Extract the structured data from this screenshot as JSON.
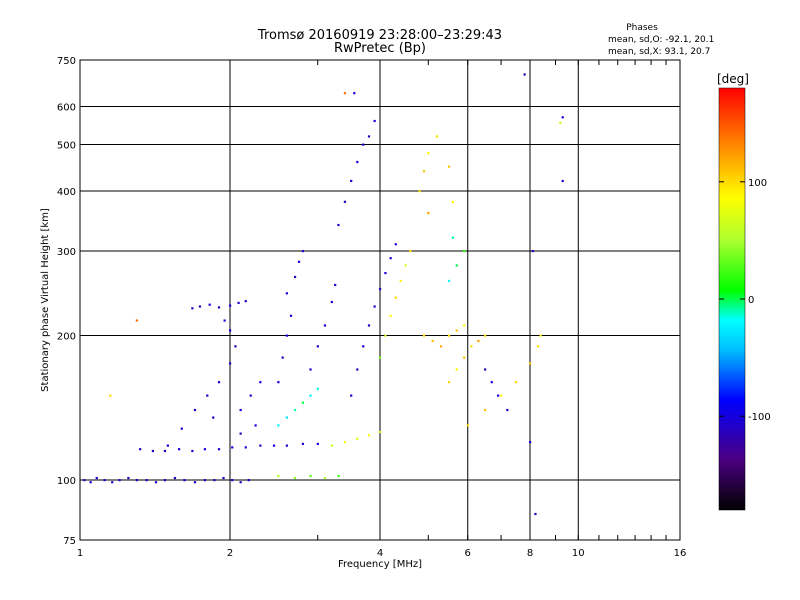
{
  "chart_data": {
    "type": "scatter",
    "title": "Tromsø 20160919 23:28:00–23:29:43",
    "subtitle": "RwPretec (Bp)",
    "xlabel": "Frequency [MHz]",
    "ylabel": "Stationary phase Virtual Height [km]",
    "x_scale": "log",
    "y_scale": "log",
    "xlim": [
      1,
      16
    ],
    "ylim": [
      75,
      750
    ],
    "x_ticks": [
      1,
      2,
      4,
      6,
      8,
      10,
      16
    ],
    "x_tick_labels": [
      "1",
      "2",
      "4",
      "6",
      "8",
      "10",
      "16"
    ],
    "y_ticks": [
      75,
      100,
      200,
      300,
      400,
      500,
      600,
      750
    ],
    "y_tick_labels": [
      "75",
      "100",
      "200",
      "300",
      "400",
      "500",
      "600",
      "750"
    ],
    "grid": true,
    "stats": {
      "heading": "Phases",
      "line_o": "mean, sd,O: -92.1, 20.1",
      "line_x": "mean, sd,X:  93.1, 20.7"
    },
    "colorbar": {
      "title": "[deg]",
      "range": [
        -180,
        180
      ],
      "ticks": [
        100,
        0,
        -100
      ],
      "tick_labels": [
        "100",
        "0",
        "-100"
      ],
      "colormap": "rainbow"
    },
    "series": [
      {
        "points": [
          [
            1.02,
            100,
            -110
          ],
          [
            1.05,
            99,
            -105
          ],
          [
            1.08,
            101,
            -100
          ],
          [
            1.12,
            100,
            -112
          ],
          [
            1.16,
            99,
            -108
          ],
          [
            1.2,
            100,
            -104
          ],
          [
            1.25,
            101,
            -110
          ],
          [
            1.3,
            100,
            -106
          ],
          [
            1.36,
            100,
            -100
          ],
          [
            1.42,
            99,
            -110
          ],
          [
            1.48,
            100,
            -105
          ],
          [
            1.55,
            101,
            -112
          ],
          [
            1.62,
            100,
            -104
          ],
          [
            1.7,
            99,
            -108
          ],
          [
            1.78,
            100,
            -100
          ],
          [
            1.86,
            100,
            -110
          ],
          [
            1.94,
            101,
            -106
          ],
          [
            2.02,
            100,
            -104
          ],
          [
            2.1,
            99,
            -110
          ],
          [
            2.18,
            100,
            -100
          ],
          [
            1.32,
            116,
            -110
          ],
          [
            1.4,
            115,
            -106
          ],
          [
            1.48,
            115,
            -112
          ],
          [
            1.58,
            116,
            -104
          ],
          [
            1.68,
            115,
            -108
          ],
          [
            1.78,
            116,
            -100
          ],
          [
            1.9,
            116,
            -110
          ],
          [
            2.02,
            117,
            -106
          ],
          [
            2.15,
            117,
            -104
          ],
          [
            2.3,
            118,
            -110
          ],
          [
            2.45,
            118,
            -100
          ],
          [
            2.6,
            118,
            -108
          ],
          [
            2.8,
            119,
            -105
          ],
          [
            3.0,
            119,
            -104
          ],
          [
            1.68,
            228,
            -112
          ],
          [
            1.74,
            230,
            -108
          ],
          [
            1.82,
            232,
            -104
          ],
          [
            1.9,
            229,
            -110
          ],
          [
            2.0,
            231,
            -100
          ],
          [
            2.08,
            234,
            -106
          ],
          [
            2.15,
            236,
            -110
          ],
          [
            1.5,
            118,
            -100
          ],
          [
            1.6,
            128,
            -104
          ],
          [
            1.7,
            140,
            -110
          ],
          [
            1.8,
            150,
            -106
          ],
          [
            1.9,
            160,
            -100
          ],
          [
            2.0,
            175,
            -108
          ],
          [
            2.05,
            190,
            -110
          ],
          [
            2.0,
            205,
            -104
          ],
          [
            1.95,
            215,
            -106
          ],
          [
            2.1,
            140,
            -100
          ],
          [
            2.2,
            150,
            -108
          ],
          [
            2.3,
            160,
            -104
          ],
          [
            2.1,
            125,
            -110
          ],
          [
            2.25,
            130,
            -100
          ],
          [
            1.85,
            135,
            -106
          ],
          [
            2.5,
            160,
            -104
          ],
          [
            2.55,
            180,
            -110
          ],
          [
            2.6,
            200,
            -100
          ],
          [
            2.65,
            220,
            -106
          ],
          [
            2.6,
            245,
            -104
          ],
          [
            2.7,
            265,
            -110
          ],
          [
            2.75,
            285,
            -100
          ],
          [
            2.8,
            300,
            -106
          ],
          [
            2.9,
            170,
            -104
          ],
          [
            3.0,
            190,
            -110
          ],
          [
            3.1,
            210,
            -100
          ],
          [
            3.2,
            235,
            -106
          ],
          [
            3.25,
            255,
            -104
          ],
          [
            2.5,
            130,
            -20
          ],
          [
            2.6,
            135,
            -30
          ],
          [
            2.7,
            140,
            -10
          ],
          [
            2.8,
            145,
            0
          ],
          [
            2.9,
            150,
            -25
          ],
          [
            3.0,
            155,
            -15
          ],
          [
            3.3,
            340,
            -105
          ],
          [
            3.4,
            380,
            -110
          ],
          [
            3.5,
            420,
            -100
          ],
          [
            3.6,
            460,
            -106
          ],
          [
            3.7,
            500,
            -104
          ],
          [
            3.8,
            520,
            -110
          ],
          [
            3.9,
            560,
            -100
          ],
          [
            3.55,
            640,
            -106
          ],
          [
            3.4,
            640,
            140
          ],
          [
            3.5,
            150,
            -105
          ],
          [
            3.6,
            170,
            -110
          ],
          [
            3.7,
            190,
            -100
          ],
          [
            3.8,
            210,
            -106
          ],
          [
            3.9,
            230,
            -104
          ],
          [
            4.0,
            250,
            -110
          ],
          [
            4.1,
            270,
            -100
          ],
          [
            4.2,
            290,
            -106
          ],
          [
            4.3,
            310,
            -104
          ],
          [
            4.0,
            180,
            40
          ],
          [
            4.1,
            200,
            60
          ],
          [
            4.2,
            220,
            80
          ],
          [
            4.3,
            240,
            100
          ],
          [
            4.4,
            260,
            90
          ],
          [
            4.5,
            280,
            70
          ],
          [
            4.6,
            300,
            100
          ],
          [
            4.8,
            400,
            100
          ],
          [
            4.9,
            440,
            110
          ],
          [
            5.0,
            480,
            90
          ],
          [
            5.2,
            520,
            100
          ],
          [
            5.5,
            450,
            110
          ],
          [
            5.6,
            380,
            90
          ],
          [
            5.0,
            360,
            120
          ],
          [
            4.9,
            200,
            100
          ],
          [
            5.1,
            195,
            110
          ],
          [
            5.3,
            190,
            120
          ],
          [
            5.5,
            200,
            100
          ],
          [
            5.7,
            205,
            110
          ],
          [
            5.9,
            210,
            90
          ],
          [
            5.5,
            160,
            100
          ],
          [
            5.7,
            170,
            90
          ],
          [
            5.9,
            180,
            110
          ],
          [
            6.1,
            190,
            100
          ],
          [
            6.3,
            195,
            120
          ],
          [
            6.5,
            200,
            100
          ],
          [
            6.0,
            130,
            100
          ],
          [
            6.5,
            140,
            110
          ],
          [
            7.0,
            150,
            90
          ],
          [
            7.5,
            160,
            100
          ],
          [
            8.0,
            175,
            110
          ],
          [
            8.3,
            190,
            100
          ],
          [
            8.4,
            200,
            90
          ],
          [
            5.5,
            260,
            -20
          ],
          [
            5.7,
            280,
            0
          ],
          [
            5.9,
            300,
            20
          ],
          [
            5.6,
            320,
            -10
          ],
          [
            6.5,
            170,
            -110
          ],
          [
            6.7,
            160,
            -100
          ],
          [
            6.9,
            150,
            -106
          ],
          [
            7.2,
            140,
            -104
          ],
          [
            3.2,
            118,
            60
          ],
          [
            3.4,
            120,
            80
          ],
          [
            3.6,
            122,
            70
          ],
          [
            3.8,
            124,
            90
          ],
          [
            4.0,
            126,
            60
          ],
          [
            2.5,
            102,
            60
          ],
          [
            2.7,
            101,
            40
          ],
          [
            2.9,
            102,
            30
          ],
          [
            3.1,
            101,
            50
          ],
          [
            3.3,
            102,
            20
          ],
          [
            1.3,
            215,
            140
          ],
          [
            1.15,
            150,
            100
          ],
          [
            7.8,
            700,
            -110
          ],
          [
            9.3,
            570,
            -106
          ],
          [
            9.2,
            555,
            60
          ],
          [
            9.3,
            420,
            -104
          ],
          [
            8.2,
            85,
            -110
          ],
          [
            8.0,
            120,
            -100
          ],
          [
            8.1,
            300,
            -104
          ]
        ]
      }
    ]
  }
}
